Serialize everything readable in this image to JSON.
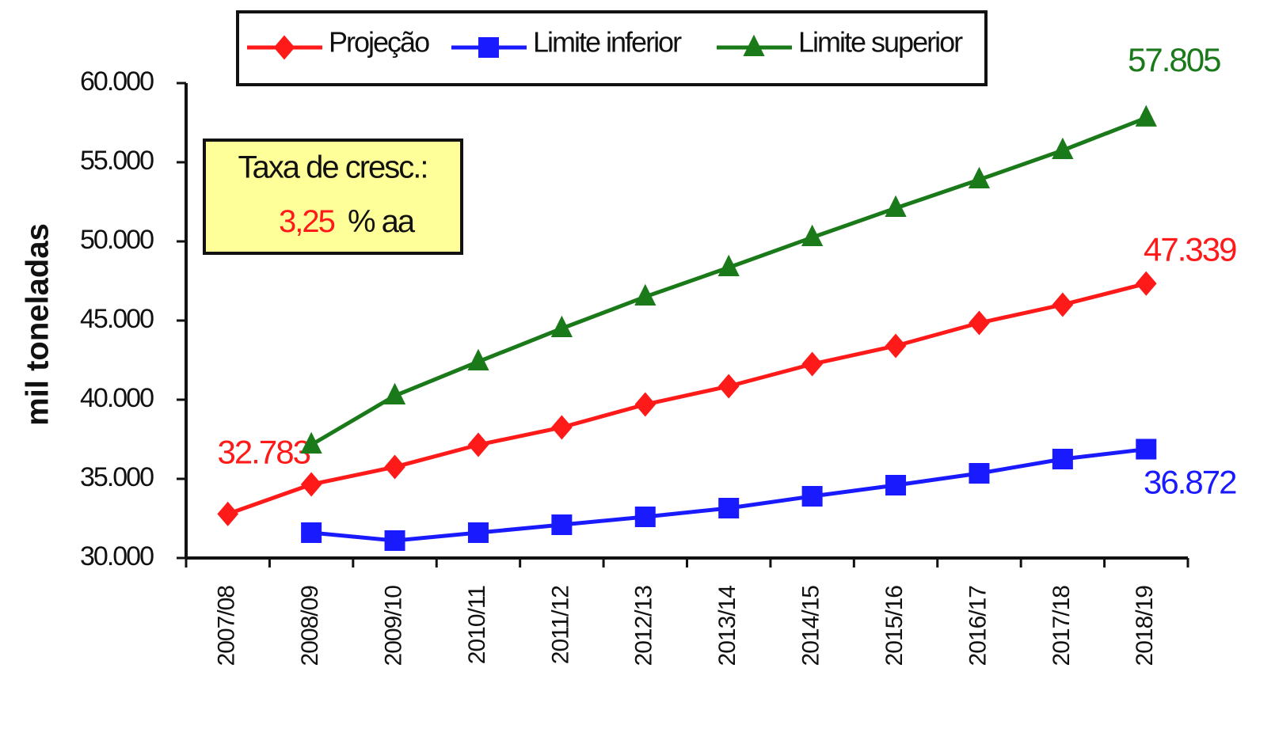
{
  "chart_data": {
    "type": "line",
    "y_label": "mil toneladas",
    "categories": [
      "2007/08",
      "2008/09",
      "2009/10",
      "2010/11",
      "2011/12",
      "2012/13",
      "2013/14",
      "2014/15",
      "2015/16",
      "2016/17",
      "2017/18",
      "2018/19"
    ],
    "series": [
      {
        "name": "Projeção",
        "color": "#ff1a1a",
        "marker": "diamond",
        "values": [
          32783,
          34650,
          35750,
          37150,
          38250,
          39700,
          40850,
          42250,
          43400,
          44850,
          46000,
          47339
        ],
        "value_labels": [
          "32.783",
          null,
          null,
          null,
          null,
          null,
          null,
          null,
          null,
          null,
          null,
          "47.339"
        ]
      },
      {
        "name": "Limite inferior",
        "color": "#1a1aff",
        "marker": "square",
        "values": [
          null,
          31600,
          31100,
          31600,
          32100,
          32600,
          33150,
          33900,
          34600,
          35350,
          36250,
          36872
        ],
        "value_labels": [
          null,
          null,
          null,
          null,
          null,
          null,
          null,
          null,
          null,
          null,
          null,
          "36.872"
        ]
      },
      {
        "name": "Limite superior",
        "color": "#1a7a1a",
        "marker": "triangle",
        "values": [
          null,
          37150,
          40250,
          42400,
          44500,
          46500,
          48350,
          50250,
          52100,
          53900,
          55750,
          57805
        ],
        "value_labels": [
          null,
          null,
          null,
          null,
          null,
          null,
          null,
          null,
          null,
          null,
          null,
          "57.805"
        ]
      }
    ],
    "ylim": [
      30000,
      60000
    ],
    "yticks": [
      {
        "value": 30000,
        "label": "30.000"
      },
      {
        "value": 35000,
        "label": "35.000"
      },
      {
        "value": 40000,
        "label": "40.000"
      },
      {
        "value": 45000,
        "label": "45.000"
      },
      {
        "value": 50000,
        "label": "50.000"
      },
      {
        "value": 55000,
        "label": "55.000"
      },
      {
        "value": 60000,
        "label": "60.000"
      }
    ],
    "grid": false,
    "legend": "top",
    "annotation": {
      "title": "Taxa de cresc.:",
      "rate": "3,25",
      "unit": "% aa"
    }
  }
}
